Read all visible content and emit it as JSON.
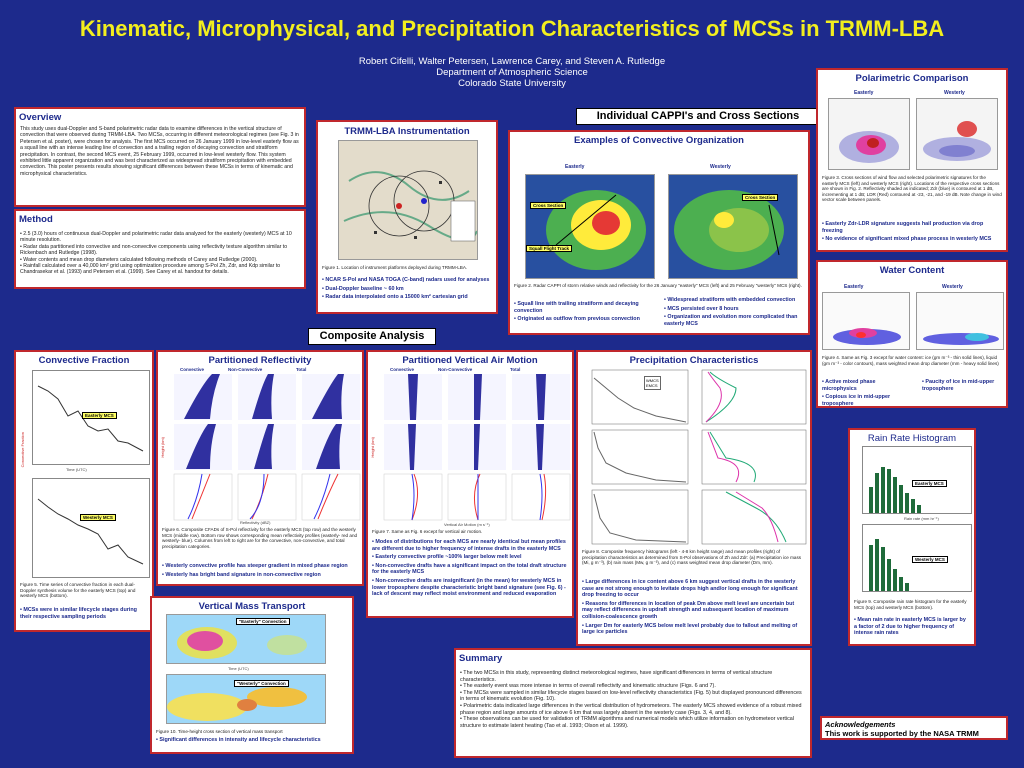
{
  "header": {
    "title": "Kinematic, Microphysical, and Precipitation Characteristics of MCSs in TRMM-LBA",
    "authors": "Robert Cifelli, Walter Petersen, Lawrence Carey, and Steven A. Rutledge",
    "department": "Department of Atmospheric Science",
    "university": "Colorado State University"
  },
  "section_banners": {
    "cappi": "Individual CAPPI's and Cross Sections",
    "composite": "Composite Analysis"
  },
  "overview": {
    "title": "Overview",
    "text": "This study uses dual-Doppler and S-band polarimetric radar data to examine differences in the vertical structure of convection that were observed during TRMM-LBA. Two MCSs, occurring in different meteorological regimes (see Fig. 3 in Petersen et al. poster), were chosen for analysis. The first MCS occurred on 26 January 1999 in low-level easterly flow as a squall line with an intense leading line of convection and a trailing region of decaying convection and stratiform precipitation. In contrast, the second MCS event, 25 February 1999, occurred in low-level westerly flow. This system exhibited little apparent organization and was best characterized as widespread stratiform precipitation with embedded convection. This poster presents results showing significant differences between these MCSs in terms of kinematic and microphysical characteristics."
  },
  "method": {
    "title": "Method",
    "items": [
      "• 2.5 (3.0) hours of continuous dual-Doppler and polarimetric radar data analyzed for the easterly (westerly) MCS at 10 minute resolution.",
      "• Radar data partitioned into convective and non-convective components using reflectivity texture algorithm similar to Rickenbach and Rutledge (1998).",
      "• Water contents and mean drop diameters calculated following methods of Carey and Rutledge (2000).",
      "• Rainfall calculated over a 40,000 km² grid using optimization procedure among S-Pol Zh, Zdr, and Kdp similar to Chandrasekar et al. (1993) and Petersen et al. (1999). See Carey et al. handout for details."
    ]
  },
  "trmm": {
    "title": "TRMM-LBA Instrumentation",
    "caption": "Figure 1. Location of instrument platforms deployed during TRMM-LBA.",
    "bullets": [
      "• NCAR S-Pol and NASA TOGA (C-band) radars used for analyses",
      "• Dual-Doppler baseline ~ 60 km",
      "• Radar data interpolated onto a 15000 km² cartesian grid"
    ]
  },
  "examples": {
    "title": "Examples of Convective Organization",
    "easterly": "Easterly",
    "westerly": "Westerly",
    "tag_cross": "Cross Section",
    "tag_squall": "Squall Flight Track",
    "tag_cross2": "Cross Section",
    "caption": "Figure 2. Radar CAPPI of storm relative winds and reflectivity for the 26 January \"easterly\" MCS (left) and 25 February \"westerly\" MCS (right).",
    "bullets_left": [
      "• Squall line with trailing stratiform and decaying convection",
      "• Originated as outflow from previous convection"
    ],
    "bullets_right": [
      "• Widespread stratiform with embedded convection",
      "• MCS persisted over 8 hours",
      "• Organization and evolution more complicated than easterly MCS"
    ]
  },
  "polarimetric": {
    "title": "Polarimetric Comparison",
    "easterly": "Easterly",
    "westerly": "Westerly",
    "caption": "Figure 3. Cross sections of wind flow and selected polarimetric signatures for the easterly MCS (left) and westerly MCS (right). Locations of the respective cross sections are shown in Fig. 2. Reflectivity shaded as indicated; Zdr (blue) is contoured at 1 dB, incrementing at 1 dB; LDR (Red) contoured at -23, -21, and -19 dB. Note change in wind vector scale between panels.",
    "bullets": [
      "• Easterly Zdr-LDR signature suggests hail production via drop freezing",
      "• No evidence of significant mixed phase process in westerly MCS"
    ]
  },
  "water": {
    "title": "Water Content",
    "easterly": "Easterly",
    "westerly": "Westerly",
    "caption": "Figure 4. Same as Fig. 3 except for water content: ice (gm m⁻³ - thin solid lines), liquid (gm m⁻³ - color contours), mass weighted mean drop diameter (mm - heavy solid lines)",
    "bullets_left": [
      "• Active mixed phase microphysics",
      "• Copious ice in mid-upper troposphere"
    ],
    "bullets_right": [
      "• Paucity of ice in mid-upper troposphere"
    ]
  },
  "convective_fraction": {
    "title": "Convective Fraction",
    "label_e": "Easterly MCS",
    "label_w": "Westerly MCS",
    "ylabel": "Convective Fraction",
    "xlabel": "Time (UTC)",
    "caption": "Figure 5. Time series of convective fraction in each dual-Doppler synthesis volume for the easterly MCS (top) and westerly MCS (bottom).",
    "bullets": [
      "• MCSs were in similar lifecycle stages during their respective sampling periods"
    ]
  },
  "reflectivity": {
    "title": "Partitioned Reflectivity",
    "cols": [
      "Convective",
      "Non-Convective",
      "Total"
    ],
    "ylabel": "Height (km)",
    "xlabel": "Reflectivity (dBZ)",
    "caption": "Figure 6. Composite CFADs of S-Pol reflectivity for the easterly MCS (top row) and the westerly MCS (middle row). Bottom row shows corresponding mean reflectivity profiles (easterly- red and westerly- blue). Columns from left to right are for the convective, non-convective, and total precipitation categories.",
    "bullets": [
      "• Westerly convective profile has steeper gradient in mixed phase region",
      "• Westerly has bright band signature in non-convective region"
    ]
  },
  "vertical_motion": {
    "title": "Partitioned Vertical Air Motion",
    "cols": [
      "Convective",
      "Non-Convective",
      "Total"
    ],
    "ylabel": "Height (km)",
    "xlabel": "Vertical Air Motion (m s⁻¹)",
    "caption": "Figure 7. Same as Fig. 6 except for vertical air motion.",
    "bullets": [
      "• Modes of distributions for each MCS are nearly identical but mean profiles are different due to higher frequency of intense drafts in the easterly MCS",
      "• Easterly convective profile ~100% larger below melt level",
      "• Non-convective drafts have a significant impact on the total draft structure for the easterly MCS",
      "• Non-convective drafts are insignificant (in the mean) for westerly MCS in lower troposphere despite characteristic bright band signature (see Fig. 6) - lack of descent may reflect moist environment and reduced evaporation"
    ]
  },
  "precip": {
    "title": "Precipitation Characteristics",
    "legend": [
      "WMCS",
      "EMCS"
    ],
    "caption": "Figure 8. Composite frequency histograms (left - 4-8 km height range) and mean profiles (right) of precipitation characteristics as determined from S-Pol observations of Zh and Zdr: (a) Precipitation ice mass (Mi, g m⁻³), (b) rain mass (Mw, g m⁻³), and (c) mass weighted mean drop diameter (Dm, mm).",
    "bullets": [
      "• Large differences in ice content above 6 km suggest vertical drafts in the westerly case are not strong enough to levitate drops high and/or long enough for significant drop freezing to occur",
      "• Reasons for differences in location of peak Dm above melt level are uncertain but may reflect differences in updraft strength and subsequent location of maximum collision-coalescence growth",
      "• Larger Dm for easterly MCS below melt level probably due to fallout and melting of large ice particles"
    ]
  },
  "rain_rate": {
    "title": "Rain Rate Histogram",
    "label_e": "Easterly MCS",
    "label_w": "Westerly MCS",
    "xlabel": "Rain rate (mm hr⁻¹)",
    "caption": "Figure 9. Composite rain rate histogram for the easterly MCS (top) and westerly MCS (bottom).",
    "bullets": [
      "• Mean rain rate in easterly MCS is larger by a factor of 2 due to higher frequency of intense rain rates"
    ]
  },
  "vertical_mass": {
    "title": "Vertical Mass Transport",
    "label_e": "\"Easterly\" Convection",
    "label_w": "\"Westerly\" Convection",
    "xlabel": "Time (UTC)",
    "caption": "Figure 10. Time-height cross section of vertical mass transport",
    "bullets": [
      "• Significant differences in intensity and lifecycle characteristics"
    ]
  },
  "summary": {
    "title": "Summary",
    "items": [
      "• The two MCSs in this study, representing distinct meteorological regimes, have significant differences in terms of vertical structure characteristics.",
      "• The easterly event was more intense in terms of overall reflectivity and kinematic structure (Figs. 6 and 7).",
      "• The MCSs were sampled in similar lifecycle stages based on low-level reflectivity characteristics (Fig. 5) but displayed pronounced differences in terms of kinematic evolution (Fig. 10).",
      "• Polarimetric data indicated large differences in the vertical distribution of hydrometeors. The easterly MCS showed evidence of a robust mixed phase region and large amounts of ice above 6 km that was largely absent in the westerly case (Figs. 3, 4, and 8).",
      "• These observations can be used for validation of TRMM algorithms and numerical models which utilize information on hydrometeor vertical structure to estimate latent heating (Tao et al. 1993; Olson et al. 1999)."
    ]
  },
  "ack": {
    "title": "Acknowledgements",
    "text": "This work is supported by the NASA TRMM Program"
  }
}
